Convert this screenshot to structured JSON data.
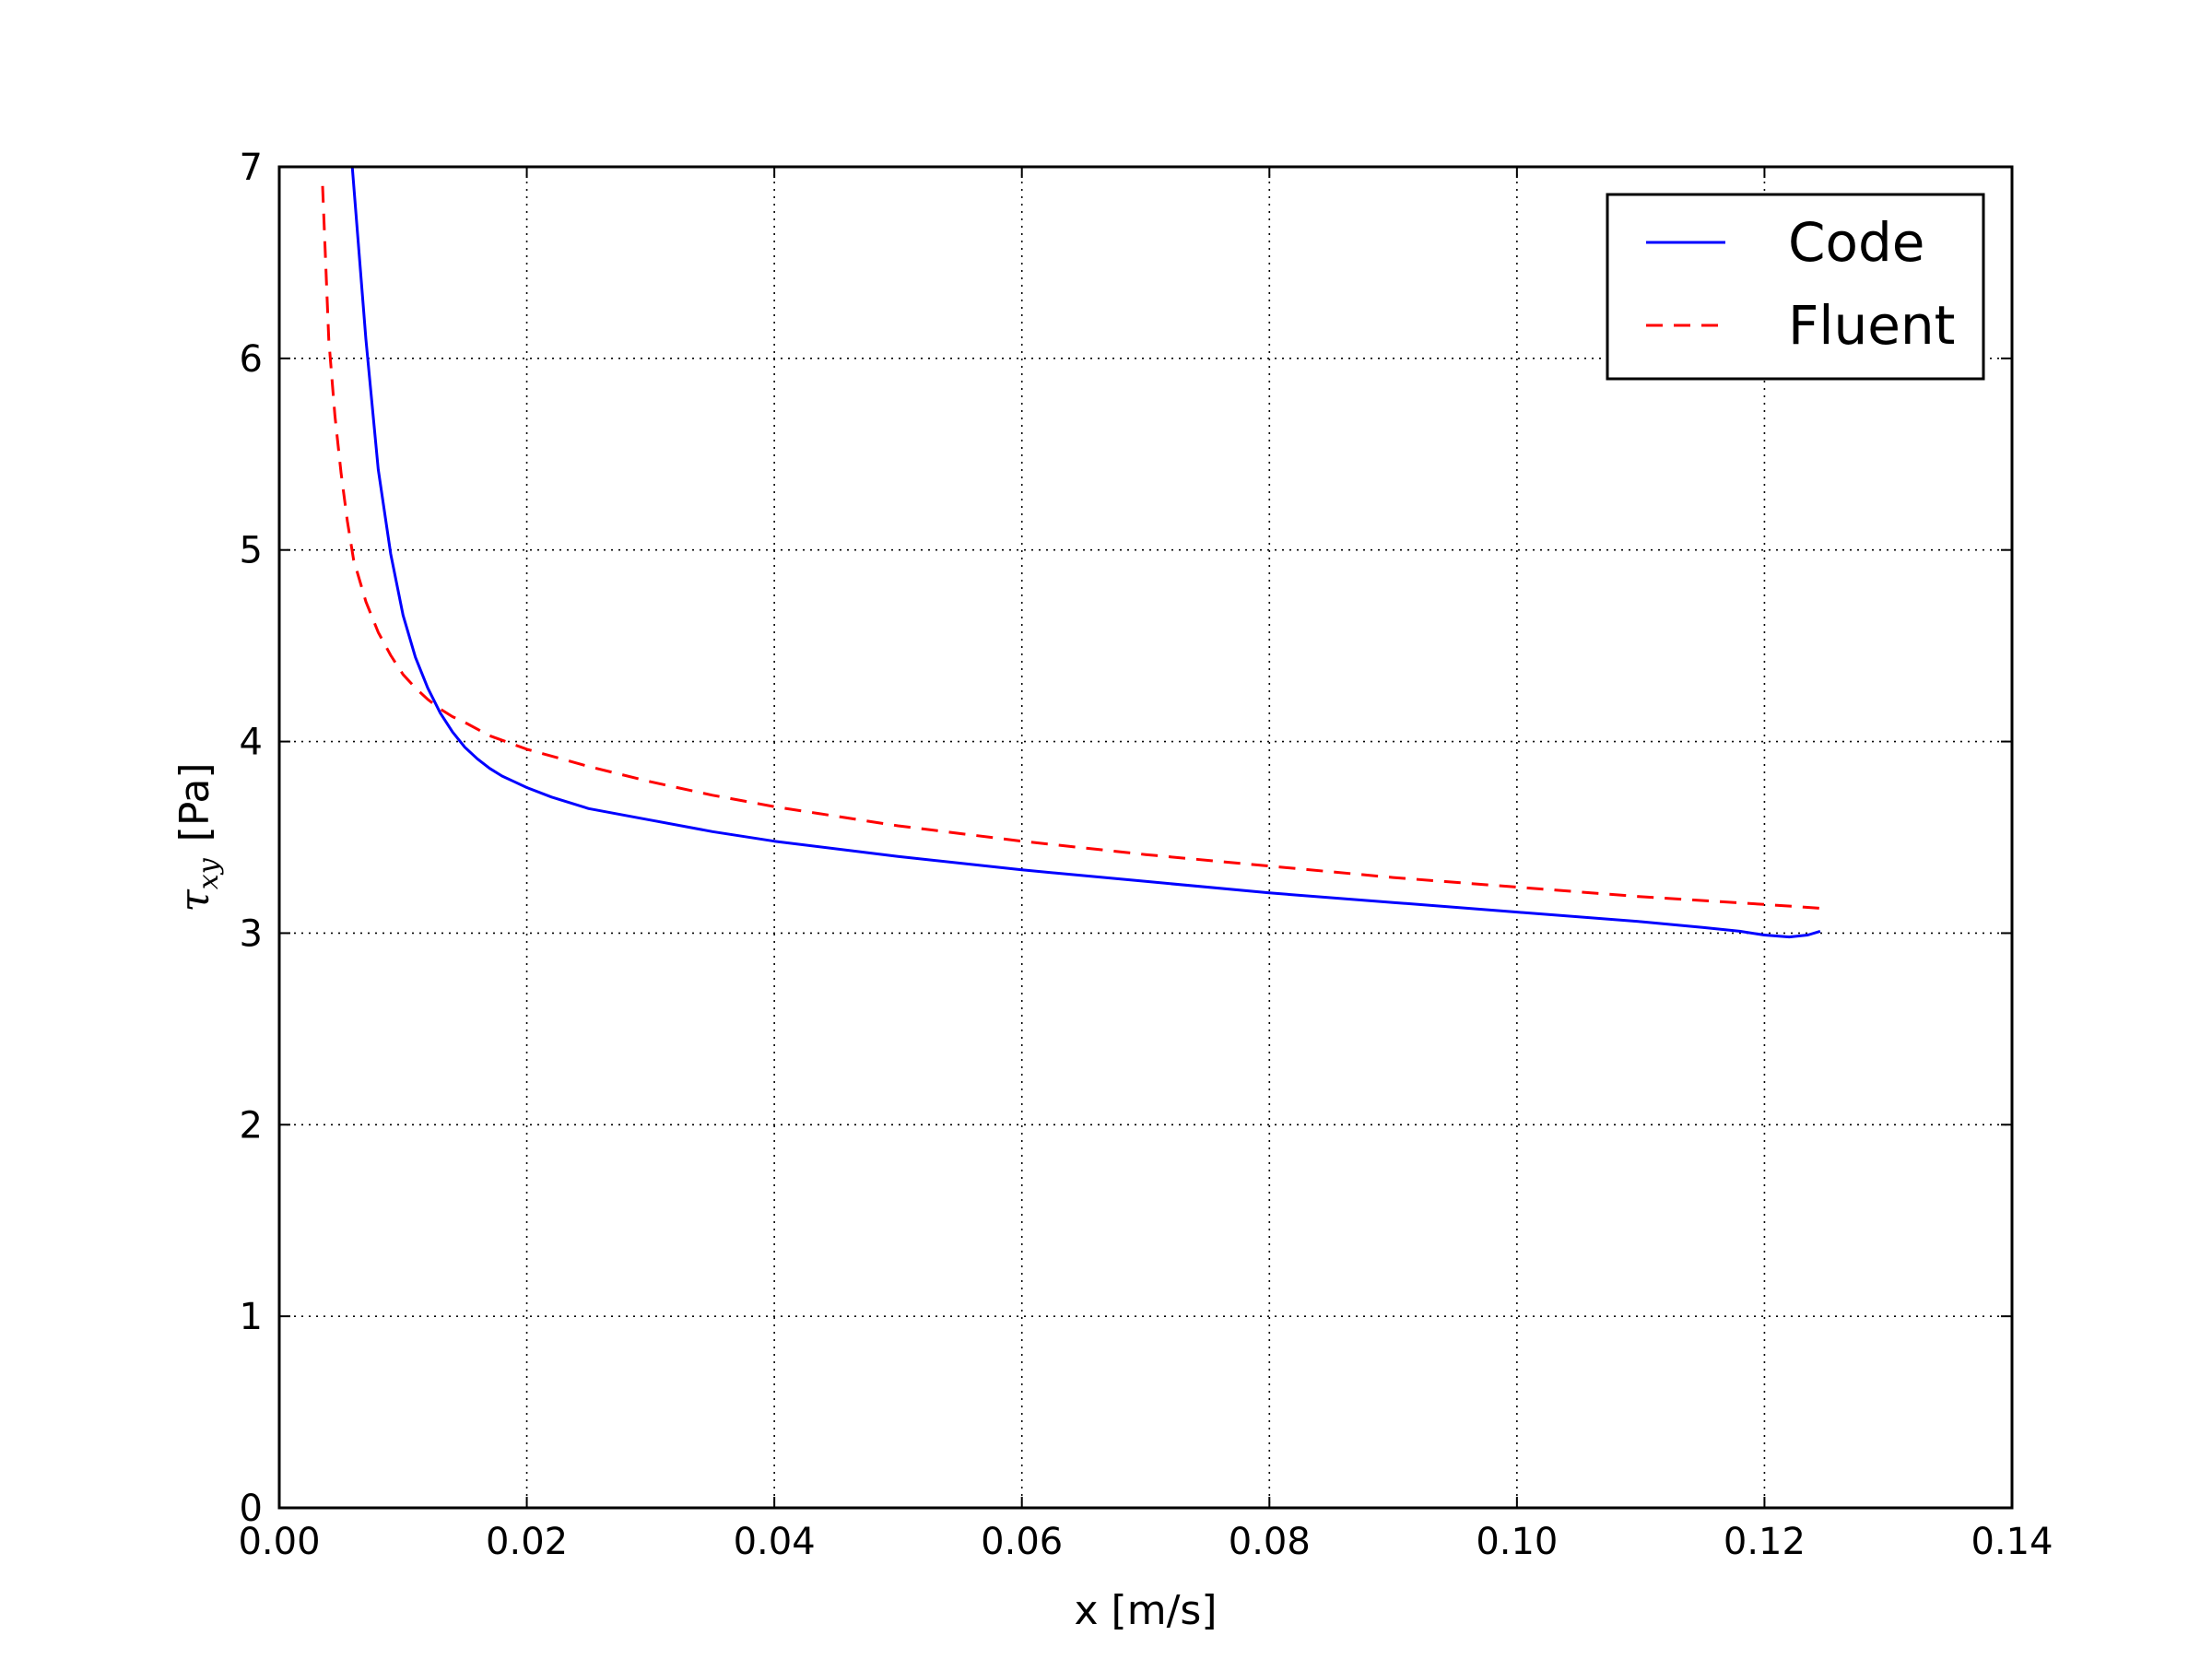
{
  "chart_data": {
    "type": "line",
    "title": "",
    "xlabel": "x [m/s]",
    "ylabel": {
      "symbol": "τ",
      "subscript": "xy",
      "unit": "[Pa]"
    },
    "xlim": [
      0.0,
      0.14
    ],
    "ylim": [
      0,
      7
    ],
    "x_ticks": [
      "0.00",
      "0.02",
      "0.04",
      "0.06",
      "0.08",
      "0.10",
      "0.12",
      "0.14"
    ],
    "y_ticks": [
      "0",
      "1",
      "2",
      "3",
      "4",
      "5",
      "6",
      "7"
    ],
    "grid": true,
    "legend_position": "top-right",
    "series": [
      {
        "name": "Code",
        "color": "#0000ff",
        "style": "solid",
        "x": [
          0.0059,
          0.007,
          0.008,
          0.009,
          0.01,
          0.011,
          0.012,
          0.013,
          0.014,
          0.015,
          0.016,
          0.017,
          0.018,
          0.019,
          0.02,
          0.022,
          0.025,
          0.03,
          0.035,
          0.04,
          0.05,
          0.06,
          0.07,
          0.08,
          0.09,
          0.1,
          0.11,
          0.115,
          0.118,
          0.12,
          0.122,
          0.1235,
          0.1245
        ],
        "y": [
          7.0,
          6.1,
          5.42,
          4.98,
          4.66,
          4.44,
          4.28,
          4.15,
          4.05,
          3.97,
          3.91,
          3.86,
          3.82,
          3.79,
          3.76,
          3.71,
          3.65,
          3.59,
          3.53,
          3.48,
          3.4,
          3.33,
          3.27,
          3.21,
          3.16,
          3.11,
          3.06,
          3.03,
          3.01,
          2.99,
          2.98,
          2.99,
          3.01
        ]
      },
      {
        "name": "Fluent",
        "color": "#ff0000",
        "style": "dashed",
        "x": [
          0.0035,
          0.004,
          0.0045,
          0.005,
          0.0055,
          0.006,
          0.007,
          0.008,
          0.009,
          0.01,
          0.011,
          0.012,
          0.013,
          0.014,
          0.015,
          0.017,
          0.02,
          0.025,
          0.03,
          0.035,
          0.04,
          0.05,
          0.06,
          0.07,
          0.08,
          0.09,
          0.1,
          0.11,
          0.12,
          0.1245
        ],
        "y": [
          6.9,
          6.1,
          5.7,
          5.4,
          5.15,
          4.95,
          4.73,
          4.57,
          4.45,
          4.35,
          4.28,
          4.22,
          4.17,
          4.13,
          4.1,
          4.03,
          3.96,
          3.87,
          3.79,
          3.72,
          3.66,
          3.56,
          3.48,
          3.41,
          3.35,
          3.29,
          3.24,
          3.19,
          3.15,
          3.13
        ]
      }
    ]
  }
}
